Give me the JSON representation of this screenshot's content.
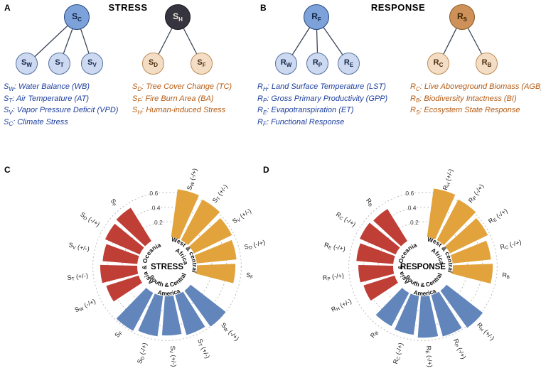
{
  "panelA": {
    "label": "A",
    "title": "STRESS",
    "trees": [
      {
        "root": {
          "main": "S",
          "sub": "C",
          "fill": "#7da1d9",
          "stroke": "#24477e",
          "text": "#0f2344"
        },
        "child_fill": "#cdd9f1",
        "child_stroke": "#54719f",
        "child_text": "#14284a",
        "children": [
          {
            "main": "S",
            "sub": "W"
          },
          {
            "main": "S",
            "sub": "T"
          },
          {
            "main": "S",
            "sub": "V"
          }
        ]
      },
      {
        "root": {
          "main": "S",
          "sub": "H",
          "fill": "#36353f",
          "stroke": "#18181f",
          "text": "#f3e9da"
        },
        "child_fill": "#f4ddc5",
        "child_stroke": "#bd8b55",
        "child_text": "#4a2d0d",
        "children": [
          {
            "main": "S",
            "sub": "D"
          },
          {
            "main": "S",
            "sub": "F"
          }
        ]
      }
    ],
    "legend_left": {
      "color": "#1d3f9e",
      "items": [
        {
          "main": "S",
          "sub": "W",
          "rest": ": Water Balance (WB)"
        },
        {
          "main": "S",
          "sub": "T",
          "rest": ": Air Temperature (AT)"
        },
        {
          "main": "S",
          "sub": "V",
          "rest": ": Vapor Pressure Deficit (VPD)"
        },
        {
          "main": "S",
          "sub": "C",
          "rest": ": Climate Stress"
        }
      ]
    },
    "legend_right": {
      "color": "#b45b13",
      "items": [
        {
          "main": "S",
          "sub": "D",
          "rest": ": Tree Cover Change (TC)"
        },
        {
          "main": "S",
          "sub": "F",
          "rest": ": Fire Burn Area (BA)"
        },
        {
          "main": "S",
          "sub": "H",
          "rest": ": Human-induced Stress"
        }
      ]
    }
  },
  "panelB": {
    "label": "B",
    "title": "RESPONSE",
    "trees": [
      {
        "root": {
          "main": "R",
          "sub": "F",
          "fill": "#7da1d9",
          "stroke": "#24477e",
          "text": "#0f2344"
        },
        "child_fill": "#cdd9f1",
        "child_stroke": "#54719f",
        "child_text": "#14284a",
        "children": [
          {
            "main": "R",
            "sub": "W"
          },
          {
            "main": "R",
            "sub": "P"
          },
          {
            "main": "R",
            "sub": "E"
          }
        ]
      },
      {
        "root": {
          "main": "R",
          "sub": "S",
          "fill": "#cd9159",
          "stroke": "#8a5a22",
          "text": "#3a2204"
        },
        "child_fill": "#f4ddc5",
        "child_stroke": "#bd8b55",
        "child_text": "#4a2d0d",
        "children": [
          {
            "main": "R",
            "sub": "C"
          },
          {
            "main": "R",
            "sub": "B"
          }
        ]
      }
    ],
    "legend_left": {
      "color": "#1d3f9e",
      "items": [
        {
          "main": "R",
          "sub": "H",
          "rest": ": Land Surface Temperature (LST)"
        },
        {
          "main": "R",
          "sub": "P",
          "rest": ":  Gross Primary Productivity (GPP)"
        },
        {
          "main": "R",
          "sub": "E",
          "rest": ": Evapotranspiration (ET)"
        },
        {
          "main": "R",
          "sub": "F",
          "rest": ": Functional Response"
        }
      ]
    },
    "legend_right": {
      "color": "#b45b13",
      "items": [
        {
          "main": "R",
          "sub": "C",
          "rest": ": Live Aboveground Biomass (AGB)"
        },
        {
          "main": "R",
          "sub": "B",
          "rest": ": Biodiversity Intactness (BI)"
        },
        {
          "main": "R",
          "sub": "S",
          "rest": ": Ecosystem State Response"
        }
      ]
    }
  },
  "chart_data": [
    {
      "type": "polar_bar",
      "panel_label": "C",
      "center_label": "STRESS",
      "radial_ticks": [
        0.2,
        0.4,
        0.6
      ],
      "rlim": [
        0,
        0.7
      ],
      "grid": "dotted",
      "groups": [
        {
          "name_lines": [
            "West & central",
            "Africa"
          ],
          "color": "#e2a33c",
          "start_angle": 6,
          "end_angle": 106,
          "bars": [
            {
              "label": "S",
              "sub": "W",
              "suffix": " (-/+)",
              "value": 0.65
            },
            {
              "label": "S",
              "sub": "T",
              "suffix": " (+/-)",
              "value": 0.62
            },
            {
              "label": "S",
              "sub": "V",
              "suffix": " (+/-)",
              "value": 0.57
            },
            {
              "label": "S",
              "sub": "D",
              "suffix": " (-/+)",
              "value": 0.54
            },
            {
              "label": "S",
              "sub": "F",
              "suffix": "",
              "value": 0.52
            }
          ]
        },
        {
          "name_lines": [
            "South & Central",
            "America"
          ],
          "color": "#6286bb",
          "start_angle": 126,
          "end_angle": 226,
          "bars": [
            {
              "label": "S",
              "sub": "W",
              "suffix": " (-/+)",
              "value": 0.6
            },
            {
              "label": "S",
              "sub": "T",
              "suffix": " (+/-)",
              "value": 0.56
            },
            {
              "label": "S",
              "sub": "V",
              "suffix": " (+/-)",
              "value": 0.53
            },
            {
              "label": "S",
              "sub": "D",
              "suffix": " (-/+)",
              "value": 0.55
            },
            {
              "label": "S",
              "sub": "F",
              "suffix": "",
              "value": 0.58
            }
          ]
        },
        {
          "name_lines": [
            "Asia & Oceania"
          ],
          "color": "#bf3e36",
          "start_angle": 235,
          "end_angle": 330,
          "bars": [
            {
              "label": "S",
              "sub": "W",
              "suffix": " (-/+)",
              "value": 0.46
            },
            {
              "label": "S",
              "sub": "T",
              "suffix": " (+/-)",
              "value": 0.5
            },
            {
              "label": "S",
              "sub": "V",
              "suffix": " (+/-)",
              "value": 0.47
            },
            {
              "label": "S",
              "sub": "D",
              "suffix": " (-/+)",
              "value": 0.51
            },
            {
              "label": "S",
              "sub": "F",
              "suffix": "",
              "value": 0.53
            }
          ]
        }
      ]
    },
    {
      "type": "polar_bar",
      "panel_label": "D",
      "center_label": "RESPONSE",
      "radial_ticks": [
        0.2,
        0.4,
        0.6
      ],
      "rlim": [
        0,
        0.7
      ],
      "grid": "dotted",
      "groups": [
        {
          "name_lines": [
            "West & central",
            "Africa"
          ],
          "color": "#e2a33c",
          "start_angle": 6,
          "end_angle": 106,
          "bars": [
            {
              "label": "R",
              "sub": "H",
              "suffix": " (+/-)",
              "value": 0.66
            },
            {
              "label": "R",
              "sub": "P",
              "suffix": " (-/+)",
              "value": 0.62
            },
            {
              "label": "R",
              "sub": "E",
              "suffix": " (-/+)",
              "value": 0.57
            },
            {
              "label": "R",
              "sub": "C",
              "suffix": " (-/+)",
              "value": 0.52
            },
            {
              "label": "R",
              "sub": "B",
              "suffix": "",
              "value": 0.54
            }
          ]
        },
        {
          "name_lines": [
            "South & Central",
            "America"
          ],
          "color": "#6286bb",
          "start_angle": 126,
          "end_angle": 226,
          "bars": [
            {
              "label": "R",
              "sub": "H",
              "suffix": " (+/-)",
              "value": 0.62
            },
            {
              "label": "R",
              "sub": "P",
              "suffix": " (-/+)",
              "value": 0.58
            },
            {
              "label": "R",
              "sub": "E",
              "suffix": " (-/+)",
              "value": 0.56
            },
            {
              "label": "R",
              "sub": "C",
              "suffix": " (-/+)",
              "value": 0.53
            },
            {
              "label": "R",
              "sub": "B",
              "suffix": "",
              "value": 0.51
            }
          ]
        },
        {
          "name_lines": [
            "Asia & Oceania"
          ],
          "color": "#bf3e36",
          "start_angle": 235,
          "end_angle": 330,
          "bars": [
            {
              "label": "R",
              "sub": "H",
              "suffix": " (+/-)",
              "value": 0.44
            },
            {
              "label": "R",
              "sub": "P",
              "suffix": " (-/+)",
              "value": 0.47
            },
            {
              "label": "R",
              "sub": "E",
              "suffix": " (-/+)",
              "value": 0.5
            },
            {
              "label": "R",
              "sub": "C",
              "suffix": " (-/+)",
              "value": 0.53
            },
            {
              "label": "R",
              "sub": "B",
              "suffix": "",
              "value": 0.51
            }
          ]
        }
      ]
    }
  ]
}
